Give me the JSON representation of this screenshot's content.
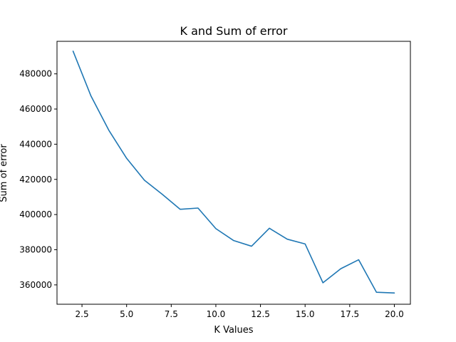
{
  "chart_data": {
    "type": "line",
    "title": "K and Sum of error",
    "xlabel": "K Values",
    "ylabel": "Sum of error",
    "xlim": [
      1.1,
      20.9
    ],
    "ylim": [
      349000,
      498500
    ],
    "xticks": [
      2.5,
      5.0,
      7.5,
      10.0,
      12.5,
      15.0,
      17.5,
      20.0
    ],
    "xtick_labels": [
      "2.5",
      "5.0",
      "7.5",
      "10.0",
      "12.5",
      "15.0",
      "17.5",
      "20.0"
    ],
    "yticks": [
      360000,
      380000,
      400000,
      420000,
      440000,
      460000,
      480000
    ],
    "ytick_labels": [
      "360000",
      "380000",
      "400000",
      "420000",
      "440000",
      "460000",
      "480000"
    ],
    "grid": false,
    "line_color": "#1f77b4",
    "x": [
      2,
      3,
      4,
      5,
      6,
      7,
      8,
      9,
      10,
      11,
      12,
      13,
      14,
      15,
      16,
      17,
      18,
      19,
      20
    ],
    "series": [
      {
        "values": [
          492900,
          467500,
          448000,
          432000,
          419500,
          411500,
          403000,
          403700,
          392000,
          385200,
          382000,
          392200,
          386000,
          383300,
          361200,
          369200,
          374300,
          355800,
          355400
        ]
      }
    ]
  }
}
